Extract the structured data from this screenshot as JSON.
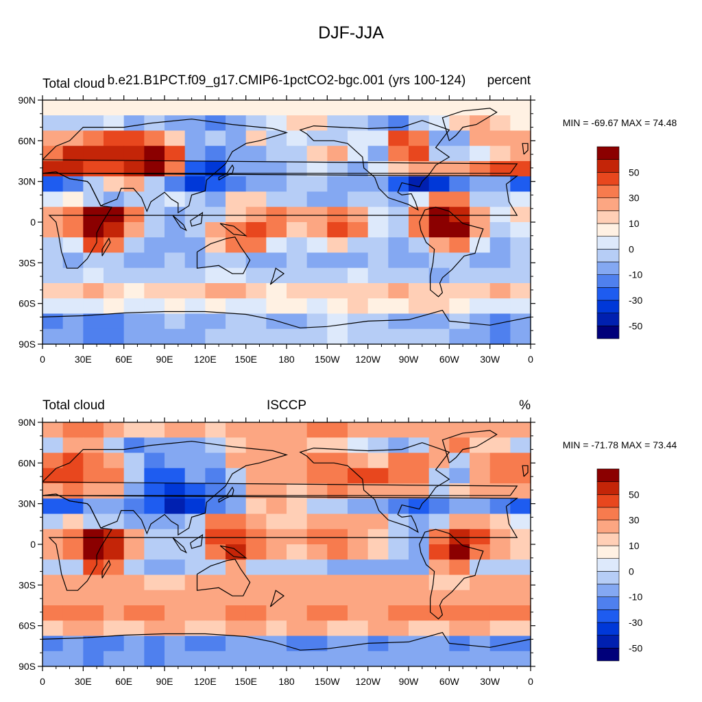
{
  "figure": {
    "title": "DJF-JJA"
  },
  "chart_data": [
    {
      "type": "heatmap",
      "left_title": "Total cloud",
      "center_title": "b.e21.B1PCT.f09_g17.CMIP6-1pctCO2-bgc.001 (yrs 100-124)",
      "right_title": "percent",
      "stats": "MIN = -69.67 MAX =  74.48",
      "min": -69.67,
      "max": 74.48,
      "xlim": [
        0,
        360
      ],
      "ylim": [
        -90,
        90
      ],
      "x_tick_labels": [
        "0",
        "30E",
        "60E",
        "90E",
        "120E",
        "150E",
        "180",
        "150W",
        "120W",
        "90W",
        "60W",
        "30W",
        "0"
      ],
      "y_tick_labels": [
        "90N",
        "60N",
        "30N",
        "0",
        "30S",
        "60S",
        "90S"
      ],
      "colorbar": {
        "levels": [
          -60,
          -50,
          -40,
          -30,
          -20,
          -10,
          -5,
          0,
          5,
          10,
          20,
          30,
          40,
          50,
          60
        ],
        "labels": [
          "50",
          "30",
          "10",
          "0",
          "-10",
          "-30",
          "-50"
        ]
      },
      "field": [
        [
          0,
          0,
          0,
          0,
          0,
          0,
          0,
          0,
          0,
          0,
          0,
          0,
          0,
          0,
          0,
          0,
          0,
          0,
          0,
          0,
          0,
          0,
          0,
          0
        ],
        [
          -10,
          -10,
          -10,
          -5,
          -20,
          -10,
          -20,
          -20,
          -30,
          -20,
          -10,
          -5,
          5,
          5,
          -10,
          -10,
          -20,
          -30,
          -10,
          -5,
          5,
          10,
          5,
          0
        ],
        [
          10,
          10,
          20,
          30,
          30,
          25,
          5,
          -20,
          -10,
          -20,
          5,
          -10,
          -5,
          -10,
          -10,
          -5,
          -5,
          30,
          20,
          -20,
          -20,
          10,
          10,
          10
        ],
        [
          20,
          40,
          40,
          40,
          40,
          50,
          30,
          -20,
          -30,
          -20,
          -15,
          -10,
          -10,
          5,
          10,
          -5,
          -20,
          20,
          30,
          -10,
          -10,
          -5,
          5,
          10
        ],
        [
          40,
          40,
          30,
          30,
          40,
          50,
          20,
          -40,
          -50,
          -20,
          -20,
          -15,
          -10,
          -5,
          -10,
          -15,
          -5,
          5,
          10,
          10,
          10,
          20,
          30,
          30
        ],
        [
          -40,
          -30,
          -10,
          5,
          10,
          -10,
          -30,
          -50,
          -40,
          -30,
          -20,
          -20,
          -10,
          -10,
          -20,
          -20,
          -20,
          -40,
          -60,
          -50,
          -30,
          -20,
          -20,
          -40
        ],
        [
          -5,
          0,
          -10,
          -20,
          -10,
          -10,
          -5,
          -10,
          -15,
          5,
          5,
          -10,
          -10,
          -20,
          -20,
          -10,
          -10,
          -20,
          -5,
          20,
          20,
          -10,
          -10,
          -5
        ],
        [
          10,
          20,
          50,
          50,
          20,
          -10,
          -20,
          -10,
          -10,
          5,
          10,
          20,
          15,
          15,
          20,
          10,
          -5,
          -10,
          20,
          50,
          40,
          10,
          -5,
          5
        ],
        [
          10,
          20,
          60,
          40,
          10,
          -10,
          -20,
          -10,
          10,
          20,
          30,
          20,
          5,
          15,
          30,
          20,
          -5,
          -10,
          20,
          60,
          50,
          10,
          -10,
          -5
        ],
        [
          -10,
          -5,
          30,
          20,
          -10,
          -20,
          -20,
          -20,
          5,
          20,
          20,
          -5,
          -10,
          -5,
          5,
          -10,
          -10,
          -20,
          -10,
          10,
          20,
          -5,
          -20,
          -10
        ],
        [
          -10,
          -20,
          -10,
          -10,
          -20,
          -20,
          -10,
          -20,
          -10,
          -10,
          -20,
          -20,
          -10,
          -20,
          -20,
          -15,
          -10,
          -20,
          -20,
          -10,
          -10,
          -20,
          -20,
          -10
        ],
        [
          -10,
          -10,
          -5,
          -10,
          -10,
          -10,
          -10,
          -10,
          -5,
          -5,
          -10,
          -10,
          -10,
          -10,
          -10,
          -5,
          -10,
          -10,
          -10,
          -20,
          -10,
          -10,
          -10,
          -10
        ],
        [
          5,
          5,
          10,
          5,
          0,
          5,
          5,
          5,
          10,
          10,
          5,
          0,
          5,
          5,
          5,
          5,
          5,
          10,
          5,
          5,
          5,
          5,
          10,
          5
        ],
        [
          -5,
          -5,
          -5,
          0,
          -5,
          -5,
          0,
          -5,
          0,
          -5,
          -5,
          0,
          0,
          -5,
          0,
          5,
          0,
          0,
          5,
          5,
          0,
          -5,
          -5,
          -5
        ],
        [
          -30,
          -20,
          -30,
          -30,
          -20,
          -20,
          -10,
          -20,
          -20,
          -10,
          -10,
          -20,
          -20,
          -10,
          -5,
          -10,
          -10,
          -20,
          -20,
          -20,
          -10,
          -20,
          -30,
          -20
        ],
        [
          -20,
          -20,
          -30,
          -30,
          -20,
          -20,
          -20,
          -20,
          -10,
          -10,
          -10,
          -10,
          -10,
          -10,
          -5,
          -10,
          -10,
          -10,
          -10,
          -10,
          -20,
          -20,
          -30,
          -20
        ]
      ]
    },
    {
      "type": "heatmap",
      "left_title": "Total cloud",
      "center_title": "ISCCP",
      "right_title": "%",
      "stats": "MIN = -71.78 MAX =  73.44",
      "min": -71.78,
      "max": 73.44,
      "xlim": [
        0,
        360
      ],
      "ylim": [
        -90,
        90
      ],
      "x_tick_labels": [
        "0",
        "30E",
        "60E",
        "90E",
        "120E",
        "150E",
        "180",
        "150W",
        "120W",
        "90W",
        "60W",
        "30W",
        "0"
      ],
      "y_tick_labels": [
        "90N",
        "60N",
        "30N",
        "0",
        "30S",
        "60S",
        "90S"
      ],
      "colorbar": {
        "levels": [
          -60,
          -50,
          -40,
          -30,
          -20,
          -10,
          -5,
          0,
          5,
          10,
          20,
          30,
          40,
          50,
          60
        ],
        "labels": [
          "50",
          "30",
          "10",
          "0",
          "-10",
          "-30",
          "-50"
        ]
      },
      "field": [
        [
          10,
          20,
          20,
          10,
          5,
          5,
          10,
          10,
          5,
          10,
          10,
          10,
          10,
          20,
          20,
          10,
          10,
          10,
          10,
          10,
          10,
          10,
          10,
          10
        ],
        [
          -10,
          10,
          10,
          -10,
          -30,
          -20,
          -20,
          -20,
          -10,
          5,
          10,
          10,
          10,
          5,
          5,
          -5,
          -10,
          -20,
          -10,
          10,
          20,
          5,
          5,
          -10
        ],
        [
          20,
          30,
          20,
          10,
          -10,
          -30,
          -20,
          -20,
          -20,
          10,
          10,
          10,
          10,
          20,
          20,
          10,
          5,
          20,
          20,
          10,
          -10,
          10,
          20,
          20
        ],
        [
          30,
          30,
          20,
          20,
          -10,
          -40,
          -40,
          -20,
          -30,
          -10,
          10,
          10,
          15,
          20,
          20,
          30,
          30,
          20,
          20,
          -10,
          -20,
          10,
          20,
          20
        ],
        [
          10,
          20,
          10,
          10,
          -20,
          -40,
          -50,
          -40,
          -30,
          -20,
          10,
          10,
          5,
          10,
          20,
          10,
          10,
          10,
          10,
          -10,
          5,
          10,
          10,
          10
        ],
        [
          -40,
          -40,
          -20,
          -20,
          -30,
          -40,
          -60,
          -50,
          -30,
          -20,
          5,
          10,
          5,
          -10,
          -10,
          -20,
          -20,
          -30,
          -40,
          -30,
          -20,
          -20,
          -30,
          -40
        ],
        [
          -10,
          5,
          -10,
          -10,
          -20,
          -20,
          -20,
          -10,
          20,
          20,
          10,
          5,
          5,
          10,
          10,
          10,
          10,
          -10,
          -20,
          -10,
          10,
          10,
          5,
          -5
        ],
        [
          10,
          20,
          50,
          40,
          10,
          -10,
          -10,
          -10,
          30,
          30,
          20,
          10,
          10,
          20,
          20,
          10,
          5,
          -10,
          -20,
          20,
          40,
          30,
          10,
          5
        ],
        [
          10,
          20,
          60,
          40,
          10,
          -10,
          -10,
          -10,
          20,
          40,
          20,
          10,
          5,
          10,
          20,
          10,
          5,
          -10,
          -20,
          30,
          50,
          20,
          10,
          5
        ],
        [
          -10,
          -10,
          30,
          20,
          -10,
          -20,
          -20,
          -10,
          -10,
          10,
          -10,
          -10,
          -10,
          -10,
          -20,
          -20,
          -20,
          -20,
          -20,
          10,
          20,
          -10,
          -10,
          -10
        ],
        [
          10,
          10,
          10,
          10,
          10,
          5,
          5,
          10,
          10,
          10,
          10,
          10,
          10,
          10,
          10,
          10,
          10,
          10,
          10,
          5,
          5,
          10,
          10,
          10
        ],
        [
          10,
          10,
          10,
          10,
          10,
          10,
          10,
          10,
          10,
          10,
          10,
          10,
          10,
          10,
          10,
          10,
          10,
          10,
          10,
          10,
          10,
          10,
          10,
          10
        ],
        [
          20,
          20,
          20,
          10,
          20,
          20,
          10,
          10,
          10,
          20,
          20,
          10,
          10,
          20,
          20,
          10,
          10,
          20,
          20,
          20,
          20,
          20,
          20,
          20
        ],
        [
          5,
          10,
          10,
          5,
          5,
          10,
          10,
          5,
          5,
          10,
          10,
          5,
          10,
          10,
          5,
          5,
          10,
          10,
          5,
          5,
          10,
          10,
          5,
          5
        ],
        [
          -30,
          -20,
          -30,
          -30,
          -20,
          -30,
          -20,
          -30,
          -30,
          -20,
          -20,
          -20,
          -30,
          -30,
          -20,
          -20,
          -30,
          -20,
          -20,
          -20,
          -30,
          -20,
          -30,
          -30
        ],
        [
          -20,
          -20,
          -30,
          -20,
          -20,
          -30,
          -20,
          -20,
          -20,
          -20,
          -20,
          -20,
          -20,
          -20,
          -20,
          -20,
          -20,
          -20,
          -20,
          -20,
          -20,
          -20,
          -20,
          -20
        ]
      ]
    }
  ],
  "colors": {
    "palette": [
      "#00007a",
      "#0020b0",
      "#0038d8",
      "#1e5cf0",
      "#4f80ee",
      "#84a8f2",
      "#b6cdf6",
      "#dde9fb",
      "#fff1e3",
      "#ffcfb6",
      "#fca682",
      "#f77b4e",
      "#e8471e",
      "#c42508",
      "#8b0000"
    ]
  }
}
